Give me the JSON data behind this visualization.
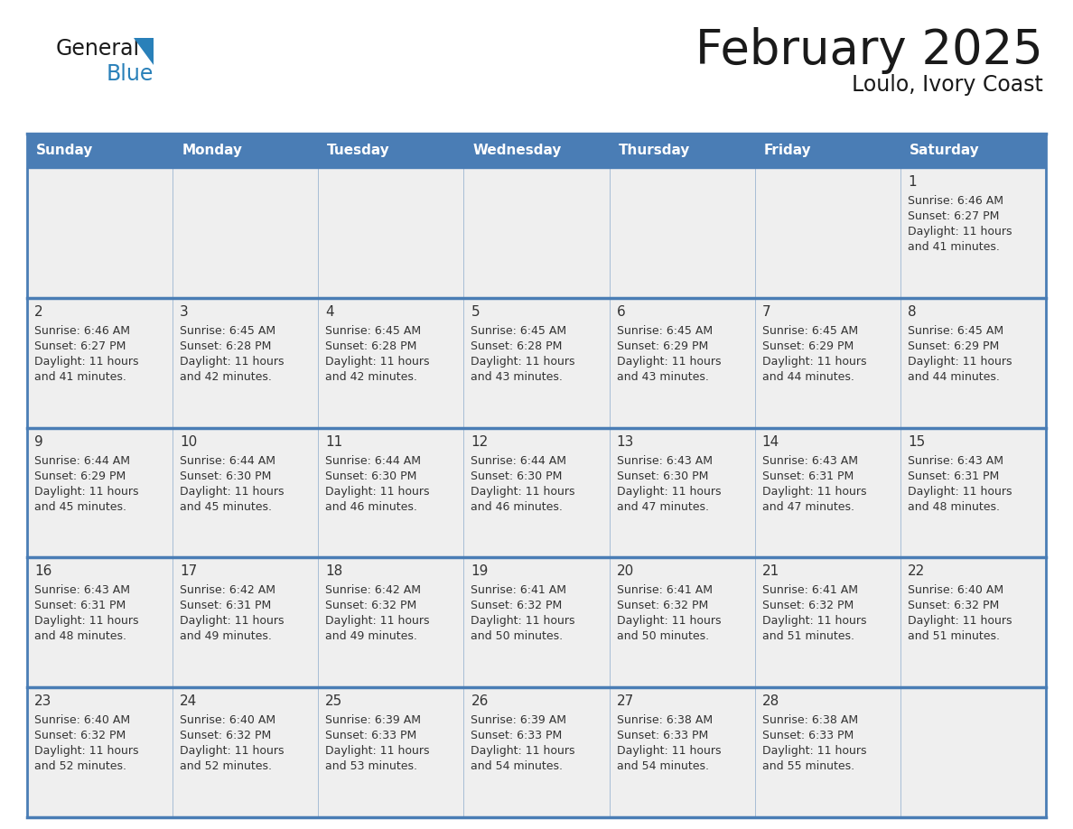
{
  "title": "February 2025",
  "subtitle": "Loulo, Ivory Coast",
  "days_of_week": [
    "Sunday",
    "Monday",
    "Tuesday",
    "Wednesday",
    "Thursday",
    "Friday",
    "Saturday"
  ],
  "header_bg": "#4A7DB5",
  "header_text": "#FFFFFF",
  "cell_bg": "#EFEFEF",
  "cell_bg_empty": "#F5F5F5",
  "border_color": "#4A7DB5",
  "day_number_color": "#333333",
  "cell_text_color": "#333333",
  "title_color": "#1a1a1a",
  "logo_general_color": "#1a1a1a",
  "logo_blue_color": "#2980B9",
  "logo_triangle_color": "#2980B9",
  "calendar_data": [
    [
      null,
      null,
      null,
      null,
      null,
      null,
      {
        "day": 1,
        "sunrise": "6:46 AM",
        "sunset": "6:27 PM",
        "daylight": "11 hours and 41 minutes."
      }
    ],
    [
      {
        "day": 2,
        "sunrise": "6:46 AM",
        "sunset": "6:27 PM",
        "daylight": "11 hours and 41 minutes."
      },
      {
        "day": 3,
        "sunrise": "6:45 AM",
        "sunset": "6:28 PM",
        "daylight": "11 hours and 42 minutes."
      },
      {
        "day": 4,
        "sunrise": "6:45 AM",
        "sunset": "6:28 PM",
        "daylight": "11 hours and 42 minutes."
      },
      {
        "day": 5,
        "sunrise": "6:45 AM",
        "sunset": "6:28 PM",
        "daylight": "11 hours and 43 minutes."
      },
      {
        "day": 6,
        "sunrise": "6:45 AM",
        "sunset": "6:29 PM",
        "daylight": "11 hours and 43 minutes."
      },
      {
        "day": 7,
        "sunrise": "6:45 AM",
        "sunset": "6:29 PM",
        "daylight": "11 hours and 44 minutes."
      },
      {
        "day": 8,
        "sunrise": "6:45 AM",
        "sunset": "6:29 PM",
        "daylight": "11 hours and 44 minutes."
      }
    ],
    [
      {
        "day": 9,
        "sunrise": "6:44 AM",
        "sunset": "6:29 PM",
        "daylight": "11 hours and 45 minutes."
      },
      {
        "day": 10,
        "sunrise": "6:44 AM",
        "sunset": "6:30 PM",
        "daylight": "11 hours and 45 minutes."
      },
      {
        "day": 11,
        "sunrise": "6:44 AM",
        "sunset": "6:30 PM",
        "daylight": "11 hours and 46 minutes."
      },
      {
        "day": 12,
        "sunrise": "6:44 AM",
        "sunset": "6:30 PM",
        "daylight": "11 hours and 46 minutes."
      },
      {
        "day": 13,
        "sunrise": "6:43 AM",
        "sunset": "6:30 PM",
        "daylight": "11 hours and 47 minutes."
      },
      {
        "day": 14,
        "sunrise": "6:43 AM",
        "sunset": "6:31 PM",
        "daylight": "11 hours and 47 minutes."
      },
      {
        "day": 15,
        "sunrise": "6:43 AM",
        "sunset": "6:31 PM",
        "daylight": "11 hours and 48 minutes."
      }
    ],
    [
      {
        "day": 16,
        "sunrise": "6:43 AM",
        "sunset": "6:31 PM",
        "daylight": "11 hours and 48 minutes."
      },
      {
        "day": 17,
        "sunrise": "6:42 AM",
        "sunset": "6:31 PM",
        "daylight": "11 hours and 49 minutes."
      },
      {
        "day": 18,
        "sunrise": "6:42 AM",
        "sunset": "6:32 PM",
        "daylight": "11 hours and 49 minutes."
      },
      {
        "day": 19,
        "sunrise": "6:41 AM",
        "sunset": "6:32 PM",
        "daylight": "11 hours and 50 minutes."
      },
      {
        "day": 20,
        "sunrise": "6:41 AM",
        "sunset": "6:32 PM",
        "daylight": "11 hours and 50 minutes."
      },
      {
        "day": 21,
        "sunrise": "6:41 AM",
        "sunset": "6:32 PM",
        "daylight": "11 hours and 51 minutes."
      },
      {
        "day": 22,
        "sunrise": "6:40 AM",
        "sunset": "6:32 PM",
        "daylight": "11 hours and 51 minutes."
      }
    ],
    [
      {
        "day": 23,
        "sunrise": "6:40 AM",
        "sunset": "6:32 PM",
        "daylight": "11 hours and 52 minutes."
      },
      {
        "day": 24,
        "sunrise": "6:40 AM",
        "sunset": "6:32 PM",
        "daylight": "11 hours and 52 minutes."
      },
      {
        "day": 25,
        "sunrise": "6:39 AM",
        "sunset": "6:33 PM",
        "daylight": "11 hours and 53 minutes."
      },
      {
        "day": 26,
        "sunrise": "6:39 AM",
        "sunset": "6:33 PM",
        "daylight": "11 hours and 54 minutes."
      },
      {
        "day": 27,
        "sunrise": "6:38 AM",
        "sunset": "6:33 PM",
        "daylight": "11 hours and 54 minutes."
      },
      {
        "day": 28,
        "sunrise": "6:38 AM",
        "sunset": "6:33 PM",
        "daylight": "11 hours and 55 minutes."
      },
      null
    ]
  ]
}
